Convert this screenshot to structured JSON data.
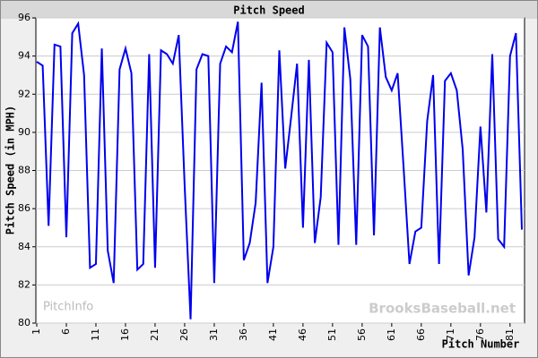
{
  "chart_data": {
    "type": "line",
    "title": "Pitch Speed",
    "x_label": "Pitch Number",
    "y_label": "Pitch Speed (in MPH)",
    "annotations": [
      "PitchInfo",
      "BrooksBaseball.net"
    ],
    "x": [
      1,
      2,
      3,
      4,
      5,
      6,
      7,
      8,
      9,
      10,
      11,
      12,
      13,
      14,
      15,
      16,
      17,
      18,
      19,
      20,
      21,
      22,
      23,
      24,
      25,
      26,
      27,
      28,
      29,
      30,
      31,
      32,
      33,
      34,
      35,
      36,
      37,
      38,
      39,
      40,
      41,
      42,
      43,
      44,
      45,
      46,
      47,
      48,
      49,
      50,
      51,
      52,
      53,
      54,
      55,
      56,
      57,
      58,
      59,
      60,
      61,
      62,
      63,
      64,
      65,
      66,
      67,
      68,
      69,
      70,
      71,
      72,
      73,
      74,
      75,
      76,
      77,
      78,
      79,
      80,
      81,
      82,
      83
    ],
    "series": [
      {
        "name": "Pitch Speed",
        "color": "#0000ee",
        "values": [
          93.7,
          93.5,
          85.1,
          94.6,
          94.5,
          84.5,
          95.2,
          95.7,
          93.0,
          82.9,
          83.1,
          94.4,
          83.8,
          82.1,
          93.3,
          94.4,
          93.1,
          82.8,
          83.1,
          94.1,
          82.9,
          94.3,
          94.1,
          93.6,
          95.1,
          87.2,
          80.2,
          93.3,
          94.1,
          94.0,
          82.1,
          93.6,
          94.5,
          94.2,
          95.8,
          83.3,
          84.2,
          86.3,
          92.6,
          82.1,
          84.0,
          94.3,
          88.1,
          90.8,
          93.6,
          85.0,
          93.8,
          84.2,
          86.6,
          94.7,
          94.2,
          84.1,
          95.5,
          92.8,
          84.1,
          95.1,
          94.5,
          84.6,
          95.5,
          92.9,
          92.2,
          93.1,
          88.2,
          83.1,
          84.8,
          85.0,
          90.6,
          93.0,
          83.1,
          92.7,
          93.1,
          92.2,
          89.1,
          82.5,
          84.5,
          90.3,
          85.8,
          94.1,
          84.4,
          84.0,
          94.0,
          95.2,
          84.9
        ]
      }
    ],
    "xlim": [
      1,
      83
    ],
    "xticks": [
      1,
      6,
      11,
      16,
      21,
      26,
      31,
      36,
      41,
      46,
      51,
      56,
      61,
      66,
      71,
      76,
      81
    ],
    "ylim": [
      80,
      96
    ],
    "yticks": [
      80,
      82,
      84,
      86,
      88,
      90,
      92,
      94,
      96
    ],
    "grid": true
  }
}
